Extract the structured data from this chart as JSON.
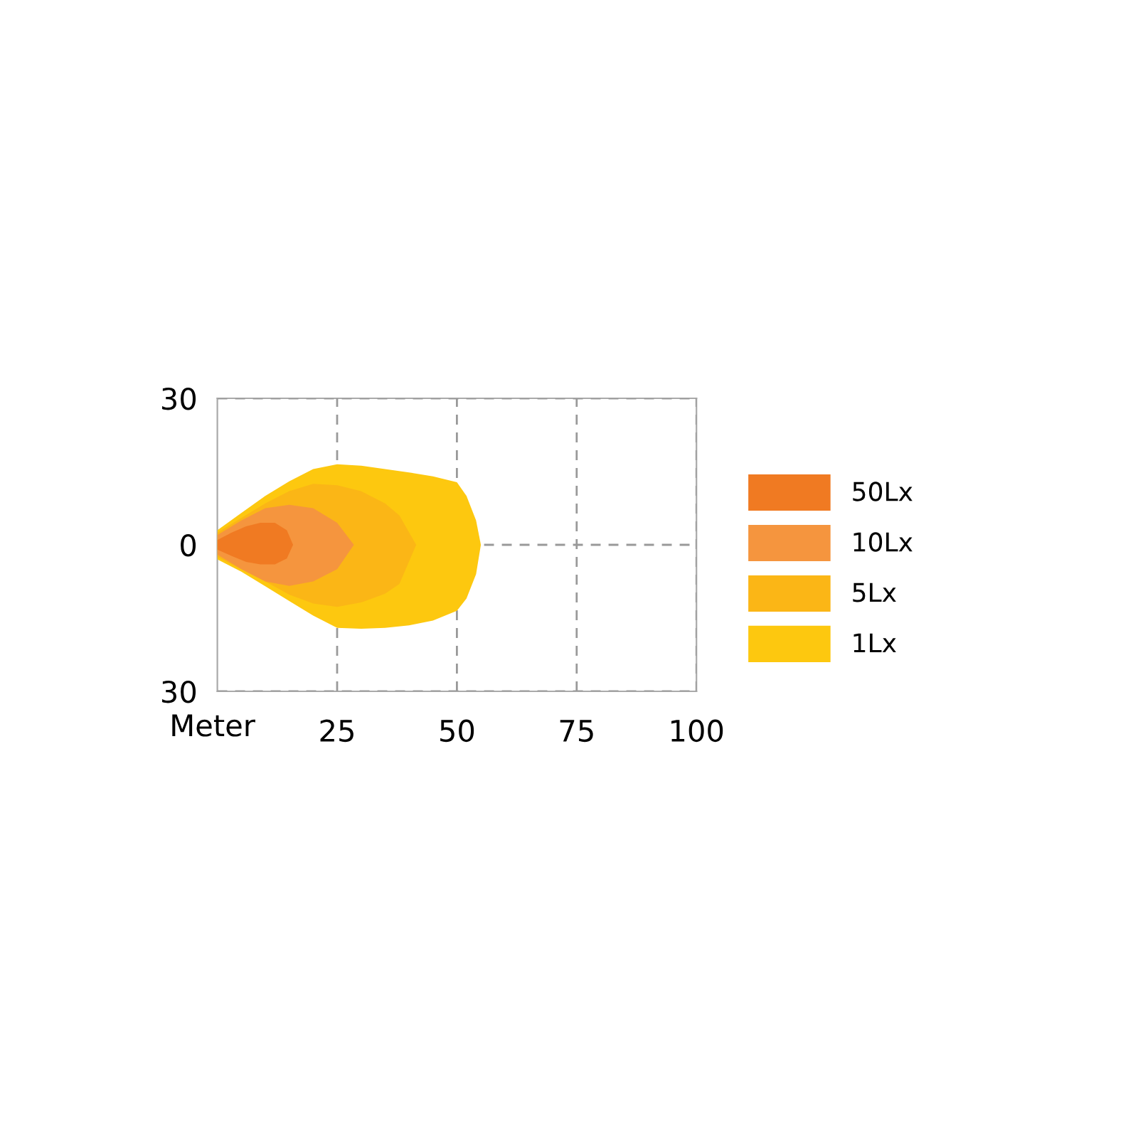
{
  "chart_data": {
    "type": "area",
    "xlabel": "Meter",
    "xlim": [
      0,
      100
    ],
    "xticks": [
      25,
      50,
      75,
      100
    ],
    "ylim": [
      -30,
      30
    ],
    "yticks": [
      {
        "value": -30,
        "label": "30"
      },
      0,
      30
    ],
    "grid": true,
    "legend": "right",
    "series": [
      {
        "name": "50Lx",
        "color": "#f07a22",
        "x": [
          0,
          3,
          6,
          9,
          12,
          14.5,
          15.8
        ],
        "values": [
          1,
          2.5,
          3.8,
          4.5,
          4.5,
          3,
          0
        ]
      },
      {
        "color": "#f07a22",
        "x": [
          0,
          3,
          6,
          9,
          12,
          14.5,
          15.8
        ],
        "values": [
          -1,
          -2.3,
          -3.5,
          -4,
          -4,
          -2.8,
          0
        ]
      },
      {
        "name": "10Lx",
        "color": "#f5953e",
        "x": [
          0,
          5,
          10,
          15,
          20,
          25,
          28.5
        ],
        "values": [
          2,
          5,
          7.5,
          8.2,
          7.5,
          4.5,
          0
        ]
      },
      {
        "color": "#f5953e",
        "x": [
          0,
          5,
          10,
          15,
          20,
          25,
          28.5
        ],
        "values": [
          -2,
          -5,
          -7.5,
          -8.4,
          -7.5,
          -5,
          0
        ]
      },
      {
        "name": "5Lx",
        "color": "#fbb616",
        "x": [
          0,
          5,
          10,
          15,
          20,
          25,
          30,
          35,
          38,
          41.5
        ],
        "values": [
          2.5,
          5.5,
          8.5,
          11,
          12.5,
          12.2,
          11,
          8.5,
          6,
          0
        ]
      },
      {
        "color": "#fbb616",
        "x": [
          0,
          5,
          10,
          15,
          20,
          25,
          30,
          35,
          38,
          41.5
        ],
        "values": [
          -2.5,
          -5,
          -7.5,
          -10.2,
          -12,
          -12.7,
          -11.8,
          -10,
          -8,
          0
        ]
      },
      {
        "name": "1Lx",
        "color": "#fdc80f",
        "x": [
          0,
          5,
          10,
          15,
          20,
          25,
          30,
          35,
          40,
          45,
          50,
          52,
          54,
          55
        ],
        "values": [
          3,
          6.5,
          10,
          13,
          15.5,
          16.5,
          16.2,
          15.5,
          14.8,
          14,
          12.8,
          10,
          5,
          0
        ]
      },
      {
        "color": "#fdc80f",
        "x": [
          0,
          5,
          10,
          15,
          20,
          25,
          30,
          35,
          40,
          45,
          50,
          52,
          54,
          55
        ],
        "values": [
          -3,
          -5.5,
          -8.5,
          -11.5,
          -14.5,
          -17,
          -17.2,
          -17,
          -16.5,
          -15.5,
          -13.5,
          -11,
          -6,
          0
        ]
      }
    ]
  }
}
